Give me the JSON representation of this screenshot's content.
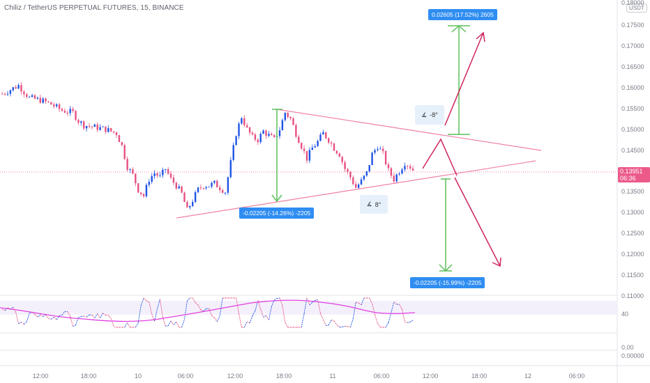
{
  "chart": {
    "title": "Chiliz / TetherUS PERPETUAL FUTURES, 15, BINANCE",
    "currency": "USDT",
    "last_price": "0.13951",
    "countdown": "06:36"
  },
  "colors": {
    "up": "#1e53e5",
    "down": "#e8507f",
    "trend_line": "#f07fa0",
    "projection": "#d0245e",
    "measure_arrow": "#5cbf5c",
    "measure_label_bg": "#2f8df2",
    "rsi_line": "#e040e0",
    "rsi_band": "#f2eefa"
  },
  "price_axis": [
    "0.18000",
    "0.17500",
    "0.17000",
    "0.16500",
    "0.16000",
    "0.15500",
    "0.15000",
    "0.14500",
    "0.14000",
    "0.13500",
    "0.13000",
    "0.12500",
    "0.12000",
    "0.11500",
    "0.11000"
  ],
  "rsi_axis": [
    "40",
    "0.00",
    "0.00000"
  ],
  "time_axis": [
    "12:00",
    "18:00",
    "10",
    "06:00",
    "12:00",
    "18:00",
    "11",
    "06:00",
    "12:00",
    "18:00",
    "12",
    "06:00"
  ],
  "annotations": {
    "measure_up": "0.02605 (17.52%) 2605",
    "measure_down_left": "-0.02205 (-14.26%) -2205",
    "measure_down_right": "-0.02205 (-15.99%) -2205",
    "angle_upper": "-8°",
    "angle_lower": "8°"
  },
  "chart_data": {
    "type": "candlestick",
    "title": "Chiliz / TetherUS PERPETUAL FUTURES, 15, BINANCE",
    "xlabel": "",
    "ylabel": "",
    "ylim": [
      0.11,
      0.18
    ],
    "x_ticks": [
      "12:00",
      "18:00",
      "10",
      "06:00",
      "12:00",
      "18:00",
      "11",
      "06:00",
      "12:00",
      "18:00",
      "12",
      "06:00"
    ],
    "close_path": [
      [
        0,
        0.1585
      ],
      [
        3,
        0.1605
      ],
      [
        5,
        0.1575
      ],
      [
        7,
        0.157
      ],
      [
        9,
        0.156
      ],
      [
        11,
        0.1545
      ],
      [
        13,
        0.154
      ],
      [
        14,
        0.152
      ],
      [
        15,
        0.151
      ],
      [
        17,
        0.1505
      ],
      [
        19,
        0.15
      ],
      [
        21,
        0.149
      ],
      [
        22,
        0.146
      ],
      [
        23,
        0.141
      ],
      [
        24,
        0.139
      ],
      [
        25,
        0.1355
      ],
      [
        26,
        0.134
      ],
      [
        27,
        0.138
      ],
      [
        28,
        0.1395
      ],
      [
        29,
        0.1385
      ],
      [
        30,
        0.1405
      ],
      [
        31,
        0.138
      ],
      [
        32,
        0.1365
      ],
      [
        33,
        0.1345
      ],
      [
        34,
        0.1305
      ],
      [
        35,
        0.133
      ],
      [
        36,
        0.1355
      ],
      [
        37,
        0.1365
      ],
      [
        38,
        0.1365
      ],
      [
        39,
        0.137
      ],
      [
        40,
        0.136
      ],
      [
        41,
        0.135
      ],
      [
        42,
        0.142
      ],
      [
        43,
        0.149
      ],
      [
        44,
        0.153
      ],
      [
        45,
        0.15
      ],
      [
        46,
        0.148
      ],
      [
        47,
        0.1475
      ],
      [
        48,
        0.1495
      ],
      [
        49,
        0.1485
      ],
      [
        50,
        0.1475
      ],
      [
        51,
        0.15
      ],
      [
        52,
        0.154
      ],
      [
        53,
        0.1525
      ],
      [
        54,
        0.149
      ],
      [
        55,
        0.146
      ],
      [
        56,
        0.143
      ],
      [
        57,
        0.1455
      ],
      [
        58,
        0.147
      ],
      [
        59,
        0.149
      ],
      [
        60,
        0.1475
      ],
      [
        61,
        0.1455
      ],
      [
        62,
        0.144
      ],
      [
        63,
        0.1405
      ],
      [
        64,
        0.1385
      ],
      [
        65,
        0.136
      ],
      [
        66,
        0.1375
      ],
      [
        67,
        0.1395
      ],
      [
        68,
        0.144
      ],
      [
        69,
        0.146
      ],
      [
        70,
        0.144
      ],
      [
        71,
        0.14
      ],
      [
        72,
        0.138
      ],
      [
        73,
        0.14
      ],
      [
        74,
        0.142
      ],
      [
        75,
        0.141
      ],
      [
        76,
        0.1395
      ]
    ],
    "measures": [
      {
        "label": "0.02605 (17.52%) 2605",
        "change": 0.02605,
        "percent": 17.52,
        "ticks": 2605
      },
      {
        "label": "-0.02205 (-14.26%) -2205",
        "change": -0.02205,
        "percent": -14.26,
        "ticks": -2205
      },
      {
        "label": "-0.02205 (-15.99%) -2205",
        "change": -0.02205,
        "percent": -15.99,
        "ticks": -2205
      }
    ],
    "triangle": {
      "upper_angle": "-8°",
      "lower_angle": "8°"
    },
    "rsi_ticks": [
      "40",
      "0.00",
      "0.00000"
    ],
    "grid": false
  }
}
